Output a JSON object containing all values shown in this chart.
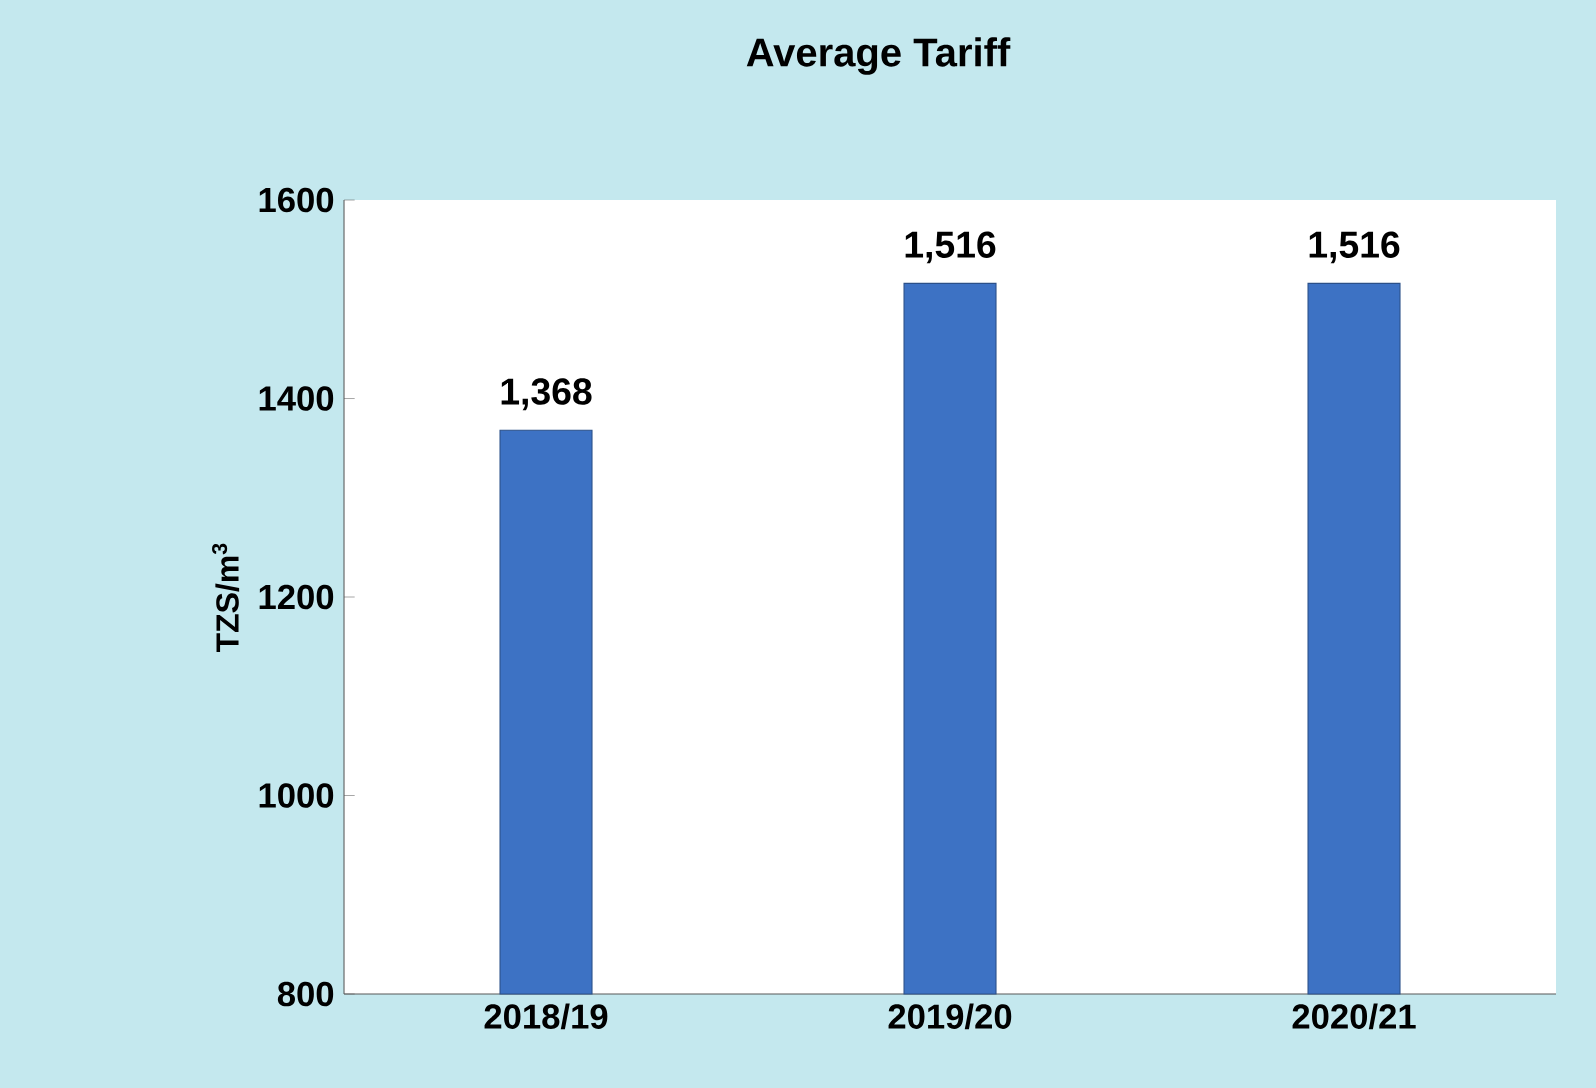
{
  "chart_data": {
    "type": "bar",
    "title": "Average Tariff",
    "ylabel": "TZS/m$^{3}$",
    "categories": [
      "2018/19",
      "2019/20",
      "2020/21"
    ],
    "values": [
      1368,
      1516,
      1516
    ],
    "value_labels": [
      "1,368",
      "1,516",
      "1,516"
    ],
    "color": "#3d72c4",
    "ylim": [
      800,
      1600
    ],
    "yticks": [
      800,
      1000,
      1200,
      1400,
      1600
    ]
  }
}
